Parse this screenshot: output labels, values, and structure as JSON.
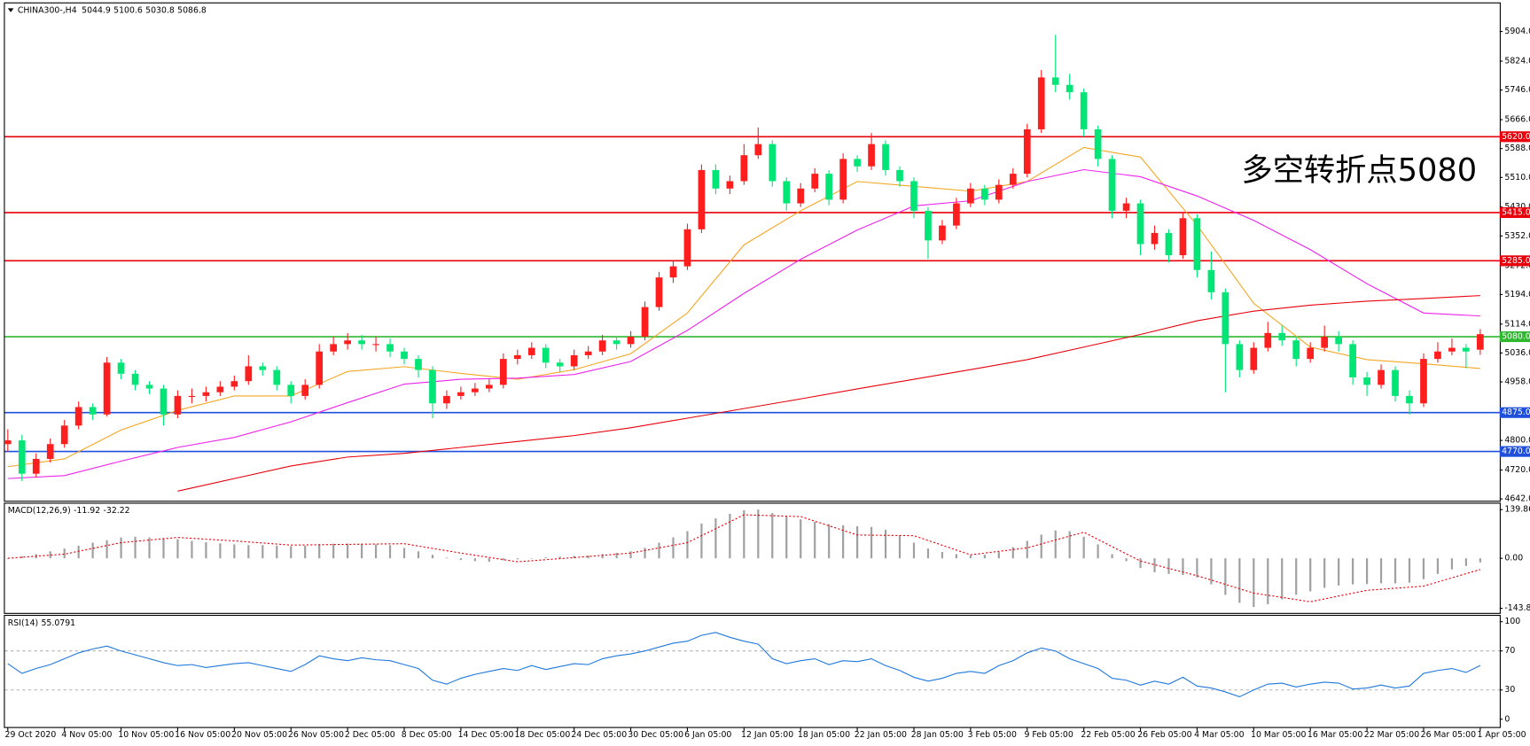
{
  "chart_data": [
    {
      "type": "candlestick",
      "title": "CHINA300-,H4",
      "up_color": "#ff1e1e",
      "down_color": "#00e676",
      "categories": [
        "29 Oct 2020",
        null,
        null,
        null,
        "4 Nov 05:00",
        null,
        null,
        null,
        "10 Nov 05:00",
        null,
        null,
        null,
        "16 Nov 05:00",
        null,
        null,
        null,
        "20 Nov 05:00",
        null,
        null,
        null,
        "26 Nov 05:00",
        null,
        null,
        null,
        "2 Dec 05:00",
        null,
        null,
        null,
        "8 Dec 05:00",
        null,
        null,
        null,
        "14 Dec 05:00",
        null,
        null,
        null,
        "18 Dec 05:00",
        null,
        null,
        null,
        "24 Dec 05:00",
        null,
        null,
        null,
        "30 Dec 05:00",
        null,
        null,
        null,
        "6 Jan 05:00",
        null,
        null,
        null,
        "12 Jan 05:00",
        null,
        null,
        null,
        "18 Jan 05:00",
        null,
        null,
        null,
        "22 Jan 05:00",
        null,
        null,
        null,
        "28 Jan 05:00",
        null,
        null,
        null,
        "3 Feb 05:00",
        null,
        null,
        null,
        "9 Feb 05:00",
        null,
        null,
        null,
        "22 Feb 05:00",
        null,
        null,
        null,
        "26 Feb 05:00",
        null,
        null,
        null,
        "4 Mar 05:00",
        null,
        null,
        null,
        "10 Mar 05:00",
        null,
        null,
        null,
        "16 Mar 05:00",
        null,
        null,
        null,
        "22 Mar 05:00",
        null,
        null,
        null,
        "26 Mar 05:00",
        null,
        null,
        null,
        "1 Apr 05:00"
      ],
      "ohlc": [
        [
          4790,
          4830,
          4770,
          4800
        ],
        [
          4800,
          4815,
          4690,
          4710
        ],
        [
          4710,
          4765,
          4700,
          4750
        ],
        [
          4750,
          4805,
          4740,
          4790
        ],
        [
          4790,
          4855,
          4780,
          4840
        ],
        [
          4840,
          4905,
          4830,
          4890
        ],
        [
          4890,
          4900,
          4855,
          4870
        ],
        [
          4870,
          5025,
          4865,
          5010
        ],
        [
          5010,
          5020,
          4965,
          4980
        ],
        [
          4980,
          4990,
          4935,
          4950
        ],
        [
          4950,
          4960,
          4925,
          4940
        ],
        [
          4940,
          4950,
          4840,
          4870
        ],
        [
          4870,
          4935,
          4860,
          4920
        ],
        [
          4920,
          4940,
          4900,
          4920
        ],
        [
          4920,
          4945,
          4905,
          4930
        ],
        [
          4930,
          4960,
          4920,
          4945
        ],
        [
          4945,
          4975,
          4935,
          4960
        ],
        [
          4960,
          5030,
          4950,
          5000
        ],
        [
          5000,
          5010,
          4975,
          4990
        ],
        [
          4990,
          5000,
          4935,
          4950
        ],
        [
          4950,
          4960,
          4900,
          4920
        ],
        [
          4920,
          4965,
          4910,
          4950
        ],
        [
          4950,
          5060,
          4940,
          5040
        ],
        [
          5040,
          5080,
          5030,
          5060
        ],
        [
          5060,
          5090,
          5045,
          5070
        ],
        [
          5070,
          5085,
          5045,
          5060
        ],
        [
          5060,
          5080,
          5040,
          5060
        ],
        [
          5060,
          5075,
          5025,
          5040
        ],
        [
          5040,
          5050,
          5005,
          5020
        ],
        [
          5020,
          5030,
          4970,
          4990
        ],
        [
          4990,
          5000,
          4860,
          4900
        ],
        [
          4900,
          4935,
          4885,
          4920
        ],
        [
          4920,
          4945,
          4910,
          4930
        ],
        [
          4930,
          4955,
          4920,
          4940
        ],
        [
          4940,
          4965,
          4930,
          4950
        ],
        [
          4950,
          5035,
          4940,
          5020
        ],
        [
          5020,
          5045,
          5005,
          5030
        ],
        [
          5030,
          5065,
          5020,
          5050
        ],
        [
          5050,
          5060,
          4995,
          5010
        ],
        [
          5010,
          5020,
          4985,
          5000
        ],
        [
          5000,
          5045,
          4990,
          5030
        ],
        [
          5030,
          5055,
          5020,
          5040
        ],
        [
          5040,
          5085,
          5030,
          5070
        ],
        [
          5070,
          5080,
          5045,
          5060
        ],
        [
          5060,
          5095,
          5050,
          5080
        ],
        [
          5080,
          5175,
          5070,
          5160
        ],
        [
          5160,
          5255,
          5150,
          5240
        ],
        [
          5240,
          5285,
          5225,
          5270
        ],
        [
          5270,
          5385,
          5260,
          5370
        ],
        [
          5370,
          5545,
          5360,
          5530
        ],
        [
          5530,
          5545,
          5465,
          5480
        ],
        [
          5480,
          5515,
          5465,
          5500
        ],
        [
          5500,
          5600,
          5490,
          5570
        ],
        [
          5570,
          5645,
          5560,
          5600
        ],
        [
          5600,
          5610,
          5485,
          5500
        ],
        [
          5500,
          5510,
          5420,
          5440
        ],
        [
          5440,
          5495,
          5430,
          5480
        ],
        [
          5480,
          5535,
          5470,
          5520
        ],
        [
          5520,
          5530,
          5435,
          5450
        ],
        [
          5450,
          5575,
          5440,
          5560
        ],
        [
          5560,
          5570,
          5525,
          5540
        ],
        [
          5540,
          5630,
          5530,
          5600
        ],
        [
          5600,
          5610,
          5515,
          5530
        ],
        [
          5530,
          5540,
          5485,
          5500
        ],
        [
          5500,
          5510,
          5400,
          5420
        ],
        [
          5420,
          5430,
          5290,
          5340
        ],
        [
          5340,
          5395,
          5330,
          5380
        ],
        [
          5380,
          5455,
          5370,
          5440
        ],
        [
          5440,
          5495,
          5430,
          5480
        ],
        [
          5480,
          5490,
          5435,
          5450
        ],
        [
          5450,
          5505,
          5440,
          5490
        ],
        [
          5490,
          5535,
          5480,
          5520
        ],
        [
          5520,
          5655,
          5510,
          5640
        ],
        [
          5640,
          5800,
          5630,
          5780
        ],
        [
          5780,
          5895,
          5740,
          5760
        ],
        [
          5760,
          5790,
          5720,
          5740
        ],
        [
          5740,
          5750,
          5620,
          5640
        ],
        [
          5640,
          5650,
          5540,
          5560
        ],
        [
          5560,
          5570,
          5400,
          5420
        ],
        [
          5420,
          5455,
          5400,
          5440
        ],
        [
          5440,
          5450,
          5300,
          5330
        ],
        [
          5330,
          5380,
          5315,
          5360
        ],
        [
          5360,
          5370,
          5280,
          5300
        ],
        [
          5300,
          5415,
          5290,
          5400
        ],
        [
          5400,
          5410,
          5240,
          5260
        ],
        [
          5260,
          5310,
          5180,
          5200
        ],
        [
          5200,
          5210,
          4930,
          5060
        ],
        [
          5060,
          5070,
          4970,
          4990
        ],
        [
          4990,
          5065,
          4980,
          5050
        ],
        [
          5050,
          5120,
          5040,
          5090
        ],
        [
          5090,
          5110,
          5055,
          5070
        ],
        [
          5070,
          5080,
          5000,
          5020
        ],
        [
          5020,
          5065,
          5010,
          5050
        ],
        [
          5050,
          5110,
          5040,
          5080
        ],
        [
          5080,
          5095,
          5040,
          5060
        ],
        [
          5060,
          5070,
          4950,
          4970
        ],
        [
          4970,
          4985,
          4920,
          4950
        ],
        [
          4950,
          5005,
          4940,
          4990
        ],
        [
          4990,
          5000,
          4905,
          4920
        ],
        [
          4920,
          4935,
          4870,
          4900
        ],
        [
          4900,
          5035,
          4890,
          5020
        ],
        [
          5020,
          5065,
          5010,
          5040
        ],
        [
          5040,
          5075,
          5030,
          5050
        ],
        [
          5050,
          5060,
          4995,
          5040
        ],
        [
          5044.9,
          5100.6,
          5030.8,
          5086.8
        ]
      ],
      "lines": [
        {
          "color": "#f5a623",
          "x": [
            0,
            4,
            8,
            12,
            16,
            20,
            24,
            28,
            32,
            36,
            40,
            44,
            48,
            52,
            56,
            60,
            64,
            68,
            72,
            76,
            80,
            84,
            88,
            92,
            96,
            100,
            104
          ],
          "values": [
            4729,
            4750,
            4828,
            4881,
            4920,
            4920,
            4986,
            4999,
            4981,
            4965,
            4991,
            5034,
            5144,
            5328,
            5420,
            5499,
            5486,
            5473,
            5499,
            5591,
            5565,
            5381,
            5170,
            5052,
            5018,
            5007,
            4994
          ]
        },
        {
          "color": "#ee22ee",
          "x": [
            0,
            4,
            8,
            12,
            16,
            20,
            24,
            28,
            32,
            36,
            40,
            44,
            48,
            52,
            56,
            60,
            64,
            68,
            72,
            76,
            80,
            84,
            88,
            92,
            96,
            100,
            104
          ],
          "values": [
            4697,
            4705,
            4744,
            4781,
            4808,
            4850,
            4902,
            4952,
            4965,
            4968,
            4978,
            5013,
            5097,
            5197,
            5289,
            5368,
            5433,
            5447,
            5499,
            5531,
            5512,
            5460,
            5394,
            5315,
            5223,
            5144,
            5136
          ]
        },
        {
          "color": "#e8000b",
          "x": [
            12,
            16,
            20,
            24,
            28,
            32,
            36,
            40,
            44,
            48,
            52,
            56,
            60,
            64,
            68,
            72,
            76,
            80,
            84,
            88,
            92,
            96,
            100,
            104
          ],
          "values": [
            4663,
            4697,
            4731,
            4755,
            4765,
            4781,
            4797,
            4813,
            4834,
            4860,
            4886,
            4912,
            4939,
            4965,
            4991,
            5018,
            5052,
            5086,
            5123,
            5149,
            5165,
            5176,
            5183,
            5191
          ]
        }
      ],
      "levels": [
        {
          "value": 5620,
          "label": "5620.0",
          "color": "#e8000b"
        },
        {
          "value": 5415,
          "label": "5415.0",
          "color": "#e8000b"
        },
        {
          "value": 5285,
          "label": "5285.0",
          "color": "#e8000b"
        },
        {
          "value": 5080,
          "label": "5080.0",
          "color": "#2fb82f"
        },
        {
          "value": 4875,
          "label": "4875.0",
          "color": "#1e50dc"
        },
        {
          "value": 4770,
          "label": "4770.0",
          "color": "#1e50dc"
        }
      ],
      "annotation": {
        "text": "多空转折点5080",
        "color": "#e8201e"
      },
      "ylim": [
        4637,
        5980
      ],
      "yticks": [
        {
          "value": 5904,
          "label": "5904.0"
        },
        {
          "value": 5824,
          "label": "5824.0"
        },
        {
          "value": 5746,
          "label": "5746.0"
        },
        {
          "value": 5666,
          "label": "5666.0"
        },
        {
          "value": 5588,
          "label": "5588.0"
        },
        {
          "value": 5510,
          "label": "5510.0"
        },
        {
          "value": 5430,
          "label": "5430.0"
        },
        {
          "value": 5352,
          "label": "5352.0"
        },
        {
          "value": 5272,
          "label": "5272.0"
        },
        {
          "value": 5194,
          "label": "5194.0"
        },
        {
          "value": 5114,
          "label": "5114.0"
        },
        {
          "value": 5036,
          "label": "5036.0"
        },
        {
          "value": 4958,
          "label": "4958.0"
        },
        {
          "value": 4878,
          "label": "4878.0"
        },
        {
          "value": 4800,
          "label": "4800.0"
        },
        {
          "value": 4720,
          "label": "4720.0"
        },
        {
          "value": 4642,
          "label": "4642.0"
        }
      ]
    },
    {
      "type": "macd",
      "title": "MACD(12,26,9)",
      "color": "#a0a0a0",
      "values": [
        0,
        6,
        12,
        20,
        28,
        36,
        45,
        52,
        60,
        62,
        60,
        58,
        55,
        50,
        46,
        43,
        40,
        38,
        38,
        36,
        35,
        36,
        40,
        42,
        42,
        42,
        40,
        38,
        30,
        20,
        10,
        2,
        -5,
        -8,
        -10,
        -6,
        -3,
        0,
        3,
        5,
        7,
        8,
        12,
        16,
        20,
        30,
        45,
        60,
        78,
        100,
        115,
        128,
        138,
        140,
        130,
        120,
        112,
        105,
        98,
        95,
        92,
        90,
        82,
        65,
        45,
        28,
        18,
        12,
        8,
        10,
        18,
        32,
        50,
        68,
        80,
        78,
        62,
        40,
        12,
        -8,
        -28,
        -40,
        -45,
        -48,
        -55,
        -75,
        -105,
        -128,
        -140,
        -132,
        -118,
        -105,
        -95,
        -85,
        -78,
        -75,
        -74,
        -72,
        -72,
        -70,
        -60,
        -45,
        -32,
        -22,
        -11.92
      ],
      "signal": {
        "color": "#e8000b",
        "x": [
          0,
          4,
          8,
          12,
          16,
          20,
          24,
          28,
          32,
          36,
          40,
          44,
          48,
          52,
          56,
          60,
          64,
          68,
          72,
          76,
          80,
          84,
          88,
          92,
          96,
          100,
          104
        ],
        "values": [
          0,
          12,
          45,
          60,
          50,
          38,
          40,
          42,
          15,
          -10,
          2,
          15,
          45,
          125,
          120,
          67,
          65,
          10,
          30,
          75,
          -8,
          -50,
          -100,
          -125,
          -92,
          -80,
          -32.22
        ]
      },
      "ylim": [
        -157,
        157
      ],
      "yticks": [
        139.86,
        {
          "value": 0,
          "label": "0.00"
        },
        -143.82
      ]
    },
    {
      "type": "line",
      "title": "RSI(14)",
      "color": "#1e78dc",
      "values": [
        57,
        47,
        52,
        56,
        62,
        68,
        72,
        75,
        70,
        66,
        62,
        58,
        55,
        56,
        53,
        55,
        57,
        58,
        55,
        52,
        49,
        56,
        65,
        62,
        60,
        63,
        61,
        60,
        56,
        52,
        40,
        36,
        42,
        46,
        49,
        52,
        50,
        55,
        51,
        54,
        57,
        56,
        62,
        65,
        67,
        70,
        74,
        78,
        80,
        86,
        89,
        84,
        80,
        77,
        62,
        57,
        60,
        62,
        56,
        60,
        59,
        62,
        55,
        50,
        43,
        39,
        42,
        47,
        49,
        47,
        55,
        60,
        68,
        73,
        70,
        62,
        57,
        52,
        42,
        40,
        35,
        39,
        36,
        43,
        34,
        32,
        28,
        23,
        30,
        36,
        37,
        33,
        36,
        38,
        37,
        31,
        32,
        35,
        32,
        34,
        47,
        50,
        52,
        48,
        55.0791
      ],
      "levels": [
        70,
        30
      ],
      "ylim": [
        -8,
        106
      ],
      "yticks": [
        100,
        70,
        30,
        0
      ]
    }
  ]
}
